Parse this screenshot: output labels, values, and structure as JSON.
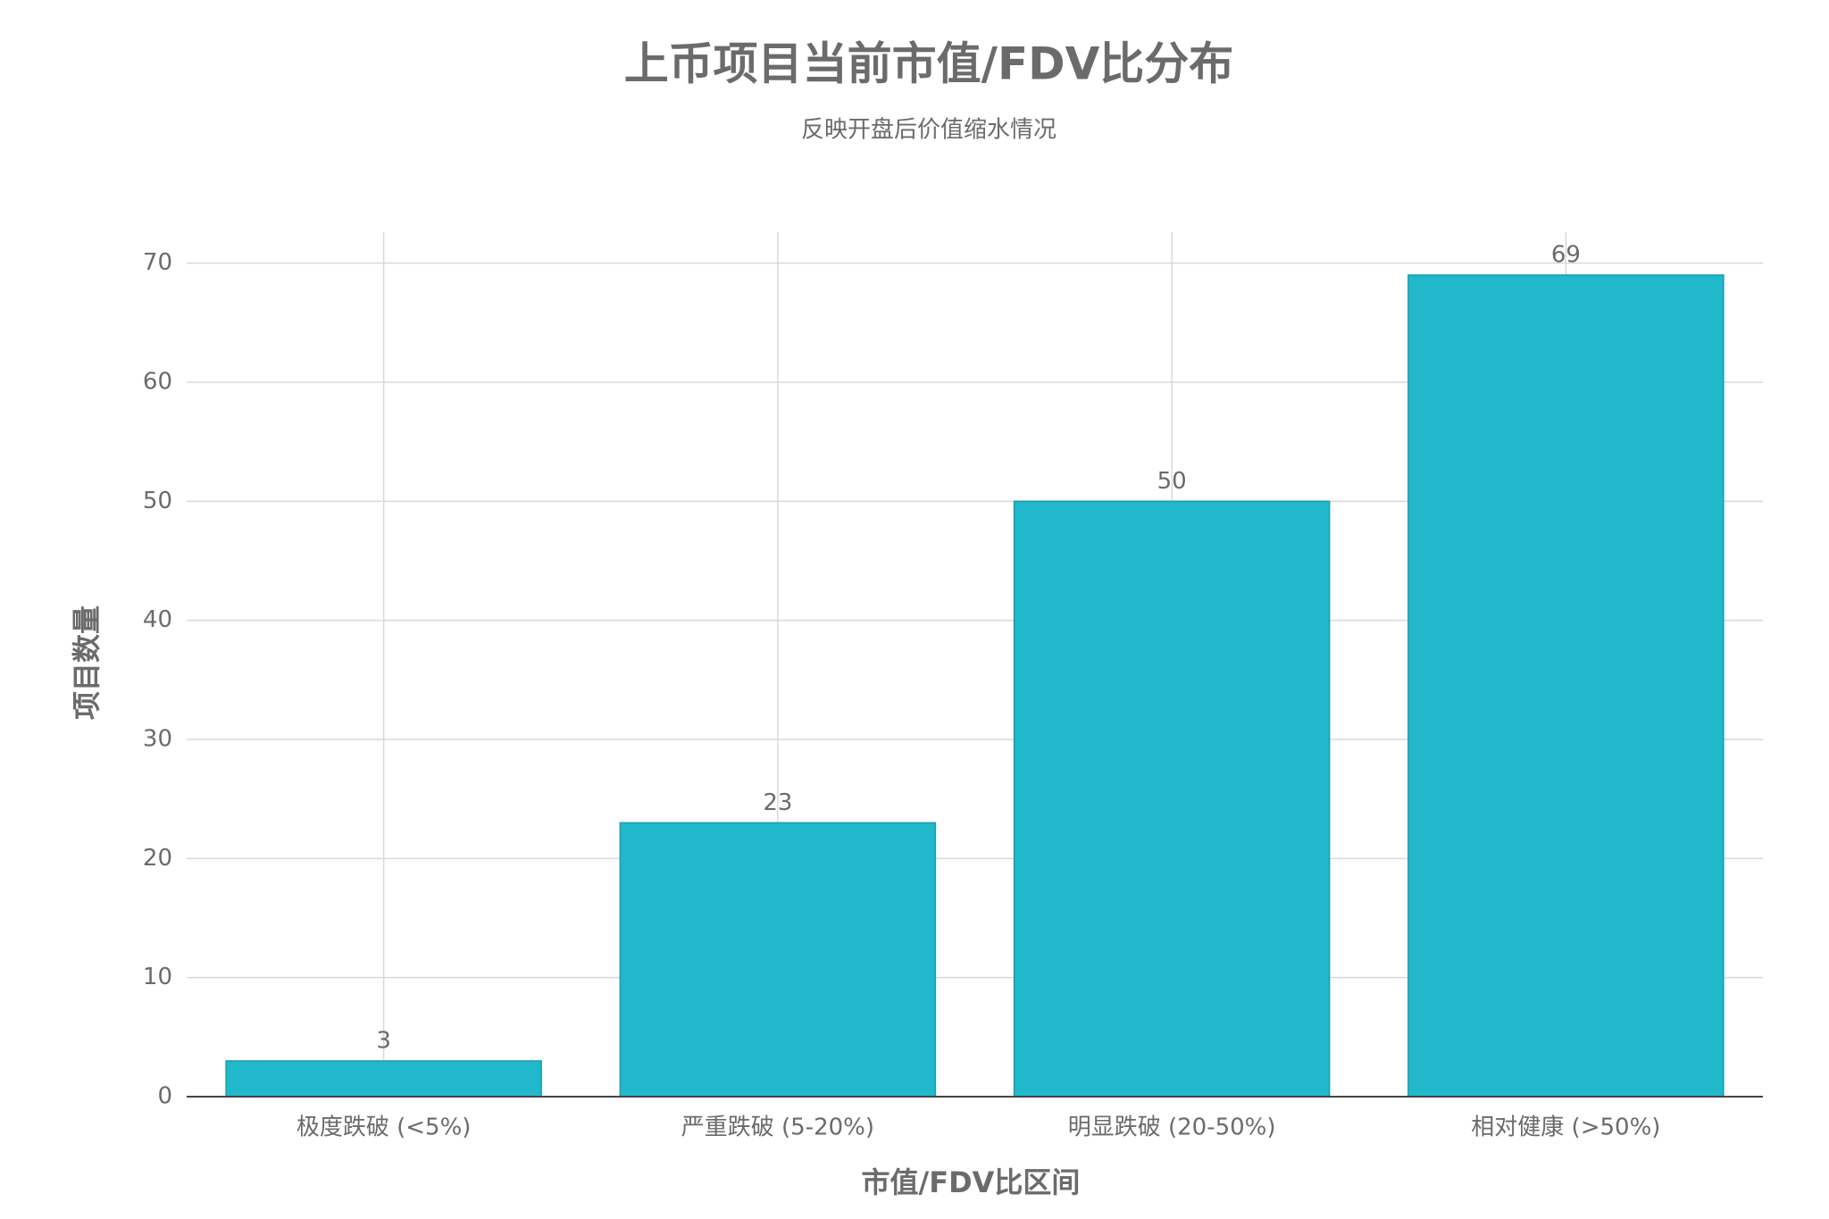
{
  "chart_data": {
    "type": "bar",
    "title": "上币项目当前市值/FDV比分布",
    "subtitle": "反映开盘后价值缩水情况",
    "x_label": "市值/FDV比区间",
    "y_label": "项目数量",
    "categories": [
      "极度跌破 (<5%)",
      "严重跌破 (5-20%)",
      "明显跌破 (20-50%)",
      "相对健康 (>50%)"
    ],
    "values": [
      3,
      23,
      50,
      69
    ],
    "color": "#21b8cc",
    "ylim": [
      0,
      72.6
    ],
    "yticks": [
      0,
      10,
      20,
      30,
      40,
      50,
      60,
      70
    ],
    "grid": true
  }
}
